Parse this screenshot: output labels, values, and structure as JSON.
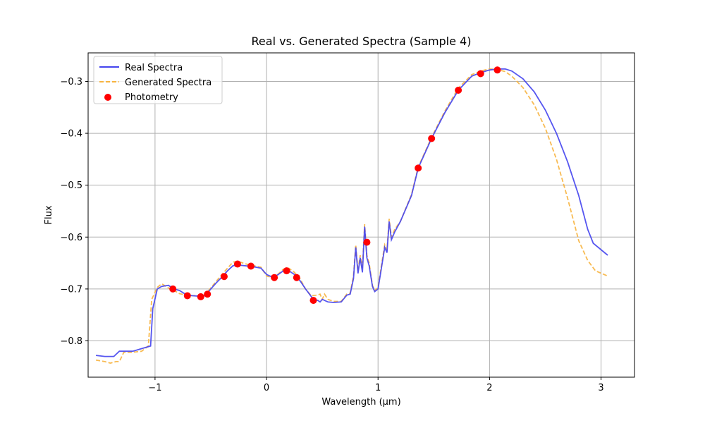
{
  "chart_data": {
    "type": "line",
    "title": "Real vs. Generated Spectra (Sample 4)",
    "xlabel": "Wavelength (µm)",
    "ylabel": "Flux",
    "xlim": [
      -1.6,
      3.3
    ],
    "ylim": [
      -0.87,
      -0.245
    ],
    "xticks": [
      -1,
      0,
      1,
      2,
      3
    ],
    "xtick_labels": [
      "−1",
      "0",
      "1",
      "2",
      "3"
    ],
    "yticks": [
      -0.8,
      -0.7,
      -0.6,
      -0.5,
      -0.4,
      -0.3
    ],
    "ytick_labels": [
      "−0.8",
      "−0.7",
      "−0.6",
      "−0.5",
      "−0.4",
      "−0.3"
    ],
    "grid": true,
    "legend_position": "top-left",
    "colors": {
      "real": "#4444ee",
      "generated": "#f7b440",
      "photometry": "#ff0000"
    },
    "series": [
      {
        "name": "Real Spectra",
        "style": "solid",
        "x": [
          -1.53,
          -1.45,
          -1.37,
          -1.32,
          -1.28,
          -1.2,
          -1.12,
          -1.04,
          -1.02,
          -0.98,
          -0.94,
          -0.88,
          -0.83,
          -0.78,
          -0.72,
          -0.67,
          -0.6,
          -0.55,
          -0.5,
          -0.45,
          -0.4,
          -0.35,
          -0.3,
          -0.25,
          -0.2,
          -0.12,
          -0.05,
          0.0,
          0.05,
          0.1,
          0.15,
          0.2,
          0.25,
          0.3,
          0.35,
          0.42,
          0.46,
          0.48,
          0.5,
          0.52,
          0.55,
          0.6,
          0.67,
          0.72,
          0.75,
          0.78,
          0.8,
          0.82,
          0.84,
          0.86,
          0.88,
          0.9,
          0.92,
          0.95,
          0.97,
          1.0,
          1.03,
          1.06,
          1.08,
          1.1,
          1.12,
          1.15,
          1.2,
          1.3,
          1.36,
          1.48,
          1.6,
          1.72,
          1.84,
          1.92,
          2.0,
          2.07,
          2.14,
          2.2,
          2.3,
          2.4,
          2.5,
          2.6,
          2.7,
          2.8,
          2.88,
          2.93,
          3.06
        ],
        "y": [
          -0.828,
          -0.83,
          -0.83,
          -0.82,
          -0.82,
          -0.82,
          -0.815,
          -0.81,
          -0.738,
          -0.7,
          -0.695,
          -0.693,
          -0.7,
          -0.703,
          -0.711,
          -0.713,
          -0.714,
          -0.713,
          -0.7,
          -0.688,
          -0.677,
          -0.665,
          -0.655,
          -0.654,
          -0.655,
          -0.657,
          -0.66,
          -0.672,
          -0.677,
          -0.673,
          -0.665,
          -0.665,
          -0.672,
          -0.684,
          -0.7,
          -0.72,
          -0.722,
          -0.725,
          -0.72,
          -0.722,
          -0.725,
          -0.726,
          -0.725,
          -0.712,
          -0.71,
          -0.68,
          -0.62,
          -0.67,
          -0.64,
          -0.668,
          -0.58,
          -0.64,
          -0.655,
          -0.695,
          -0.705,
          -0.7,
          -0.66,
          -0.62,
          -0.63,
          -0.57,
          -0.605,
          -0.59,
          -0.57,
          -0.52,
          -0.467,
          -0.41,
          -0.36,
          -0.317,
          -0.29,
          -0.283,
          -0.278,
          -0.276,
          -0.276,
          -0.28,
          -0.295,
          -0.32,
          -0.355,
          -0.4,
          -0.455,
          -0.52,
          -0.585,
          -0.612,
          -0.635
        ]
      },
      {
        "name": "Generated Spectra",
        "style": "dashed",
        "x": [
          -1.53,
          -1.45,
          -1.4,
          -1.35,
          -1.32,
          -1.28,
          -1.2,
          -1.12,
          -1.06,
          -1.03,
          -0.98,
          -0.94,
          -0.88,
          -0.83,
          -0.78,
          -0.72,
          -0.67,
          -0.6,
          -0.55,
          -0.5,
          -0.45,
          -0.4,
          -0.35,
          -0.3,
          -0.25,
          -0.2,
          -0.12,
          -0.05,
          0.0,
          0.05,
          0.1,
          0.15,
          0.2,
          0.25,
          0.3,
          0.35,
          0.4,
          0.45,
          0.48,
          0.5,
          0.52,
          0.55,
          0.6,
          0.67,
          0.72,
          0.75,
          0.78,
          0.8,
          0.82,
          0.84,
          0.86,
          0.88,
          0.9,
          0.92,
          0.95,
          0.97,
          1.0,
          1.03,
          1.06,
          1.08,
          1.1,
          1.12,
          1.15,
          1.2,
          1.3,
          1.36,
          1.48,
          1.6,
          1.72,
          1.84,
          1.92,
          2.0,
          2.07,
          2.14,
          2.2,
          2.3,
          2.4,
          2.5,
          2.6,
          2.7,
          2.8,
          2.88,
          2.95,
          3.06
        ],
        "y": [
          -0.837,
          -0.84,
          -0.843,
          -0.84,
          -0.84,
          -0.822,
          -0.822,
          -0.82,
          -0.81,
          -0.72,
          -0.697,
          -0.69,
          -0.698,
          -0.703,
          -0.709,
          -0.712,
          -0.713,
          -0.713,
          -0.711,
          -0.698,
          -0.685,
          -0.672,
          -0.66,
          -0.648,
          -0.647,
          -0.651,
          -0.655,
          -0.658,
          -0.675,
          -0.678,
          -0.672,
          -0.662,
          -0.66,
          -0.668,
          -0.68,
          -0.7,
          -0.713,
          -0.712,
          -0.71,
          -0.72,
          -0.71,
          -0.72,
          -0.724,
          -0.724,
          -0.71,
          -0.708,
          -0.675,
          -0.615,
          -0.665,
          -0.635,
          -0.66,
          -0.575,
          -0.635,
          -0.65,
          -0.693,
          -0.703,
          -0.697,
          -0.655,
          -0.615,
          -0.625,
          -0.565,
          -0.6,
          -0.585,
          -0.57,
          -0.518,
          -0.465,
          -0.408,
          -0.357,
          -0.313,
          -0.287,
          -0.28,
          -0.276,
          -0.277,
          -0.281,
          -0.29,
          -0.312,
          -0.345,
          -0.39,
          -0.45,
          -0.525,
          -0.607,
          -0.645,
          -0.665,
          -0.675
        ]
      }
    ],
    "scatter": {
      "name": "Photometry",
      "x": [
        -0.84,
        -0.71,
        -0.59,
        -0.53,
        -0.38,
        -0.26,
        -0.14,
        0.07,
        0.18,
        0.27,
        0.42,
        0.9,
        1.36,
        1.48,
        1.72,
        1.92,
        2.07
      ],
      "y": [
        -0.7,
        -0.713,
        -0.715,
        -0.71,
        -0.676,
        -0.652,
        -0.656,
        -0.678,
        -0.665,
        -0.678,
        -0.722,
        -0.61,
        -0.467,
        -0.41,
        -0.317,
        -0.285,
        -0.278
      ]
    }
  }
}
